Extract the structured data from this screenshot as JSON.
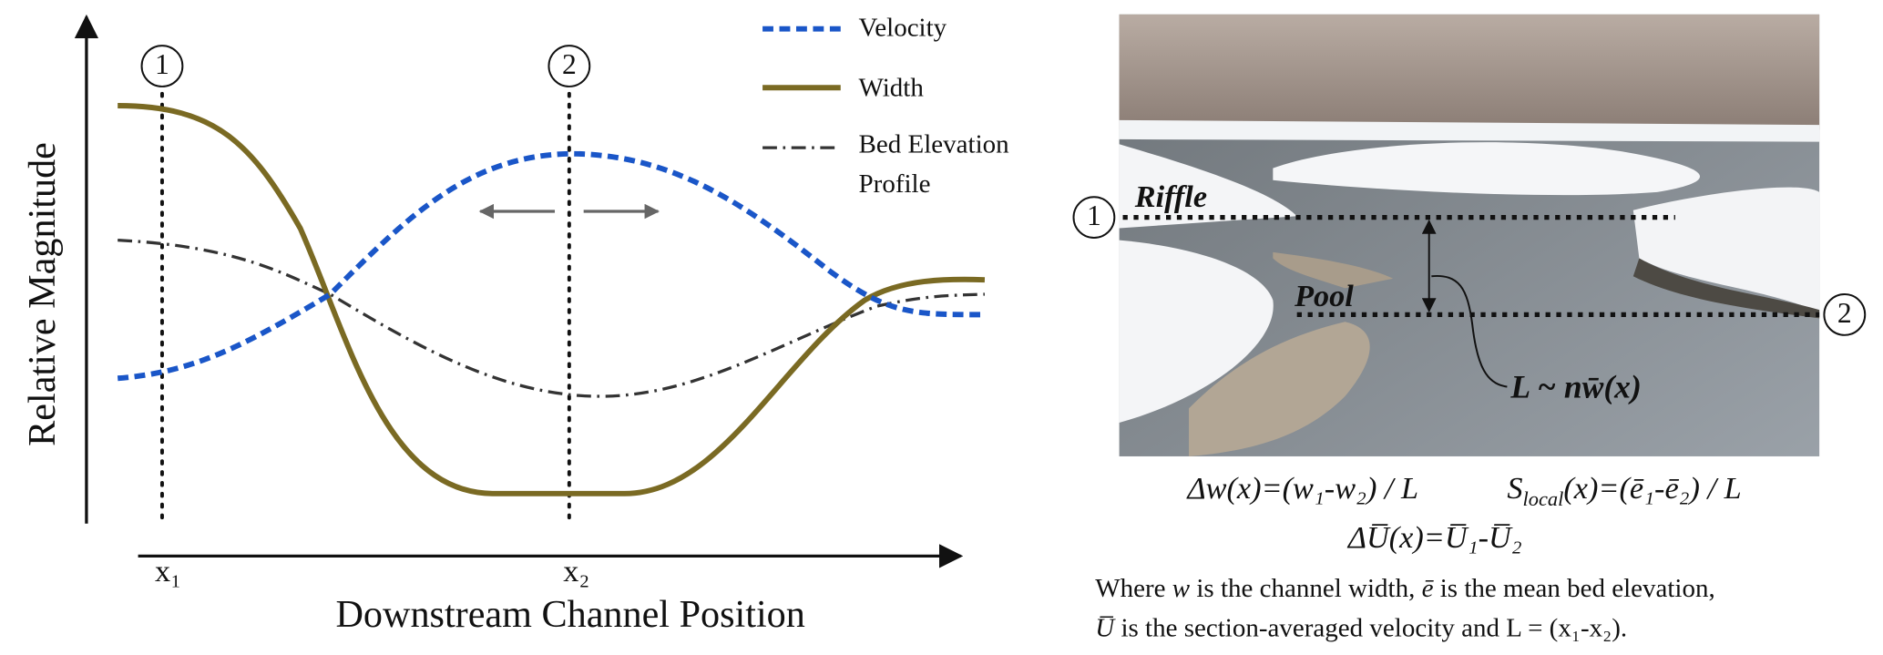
{
  "chart": {
    "y_axis_label": "Relative Magnitude",
    "x_axis_label": "Downstream Channel Position",
    "positions": [
      {
        "marker": "1",
        "label": "x₁"
      },
      {
        "marker": "2",
        "label": "x₂"
      }
    ],
    "legend": [
      {
        "lines": [
          "Velocity"
        ]
      },
      {
        "lines": [
          "Width"
        ]
      },
      {
        "lines": [
          "Bed Elevation",
          "Profile"
        ]
      }
    ]
  },
  "photo": {
    "markers": [
      "1",
      "2"
    ],
    "riffle": "Riffle",
    "pool": "Pool",
    "length_label": "L ~ nw̄(x)"
  },
  "equations": {
    "width_change": "Δw(x)=(w₁-w₂) / L",
    "slope": [
      "S",
      "local",
      "(x)=(ē₁-ē₂) / L"
    ],
    "velocity_change": "ΔU̅(x)=U̅₁-U̅₂"
  },
  "caption": [
    [
      "Where ",
      "w",
      " is the channel width, ",
      "ē",
      " is the mean bed elevation,"
    ],
    [
      "U̅",
      " is the section-averaged velocity and L = (x₁-x₂)."
    ]
  ]
}
